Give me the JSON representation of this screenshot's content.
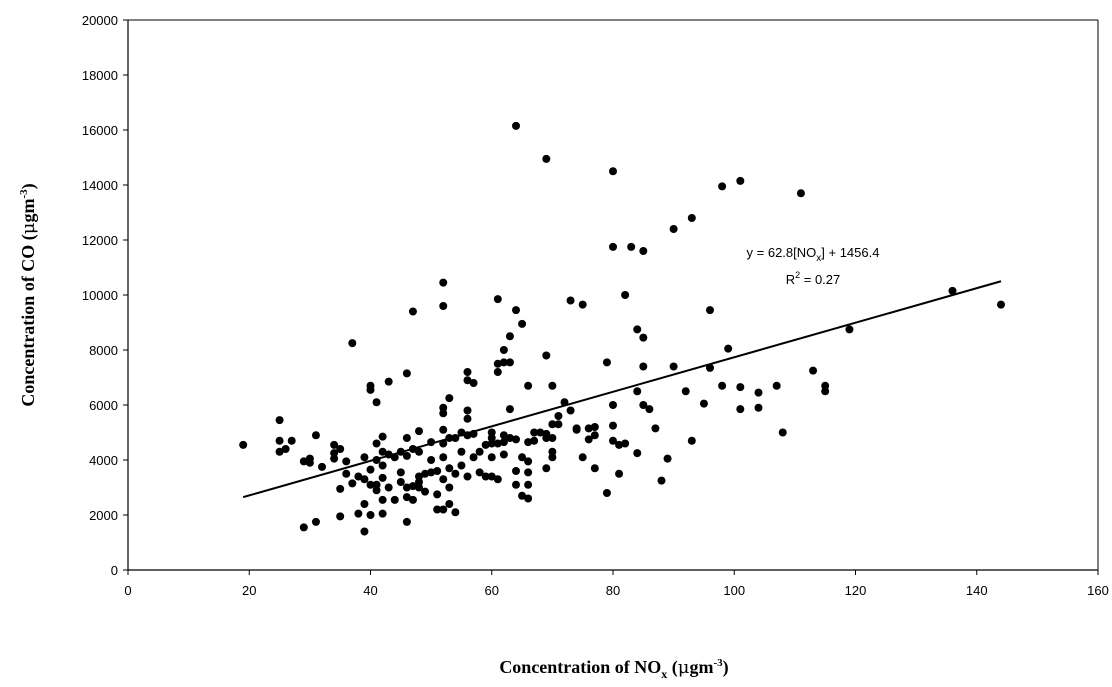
{
  "chart_data": {
    "type": "scatter",
    "title": "",
    "xlabel": {
      "main": "Concentration of NO",
      "sub": "x",
      "unit_open": " (",
      "unit_mu": "μ",
      "unit_text": "gm",
      "unit_sup": "-3",
      "unit_close": ")"
    },
    "ylabel": {
      "main": "Concentration of CO (",
      "unit_mu": "μ",
      "unit_text": "gm",
      "unit_sup": "-3",
      "unit_close": ")"
    },
    "xlim": [
      0,
      160
    ],
    "ylim": [
      0,
      20000
    ],
    "x_ticks": [
      "0",
      "20",
      "40",
      "60",
      "80",
      "100",
      "120",
      "140",
      "160"
    ],
    "y_ticks": [
      "0",
      "2000",
      "4000",
      "6000",
      "8000",
      "10000",
      "12000",
      "14000",
      "16000",
      "18000",
      "20000"
    ],
    "grid": false,
    "legend": "none",
    "trendline": {
      "slope": 62.8,
      "intercept": 1456.4,
      "x_range": [
        19,
        144
      ],
      "equation_label": {
        "prefix": "y = 62.8[NO",
        "sub": "x",
        "suffix": "] + 1456.4"
      },
      "r2_label": {
        "prefix": "R",
        "sup": "2",
        "suffix": " = 0.27"
      }
    },
    "marker_color": "#000000",
    "points": [
      [
        19,
        4550
      ],
      [
        25,
        5450
      ],
      [
        25,
        4700
      ],
      [
        25,
        4300
      ],
      [
        26,
        4400
      ],
      [
        27,
        4700
      ],
      [
        29,
        1550
      ],
      [
        29,
        3950
      ],
      [
        30,
        3900
      ],
      [
        30,
        4050
      ],
      [
        31,
        1750
      ],
      [
        31,
        4900
      ],
      [
        32,
        3750
      ],
      [
        34,
        4550
      ],
      [
        34,
        4050
      ],
      [
        34,
        4250
      ],
      [
        35,
        1950
      ],
      [
        35,
        2950
      ],
      [
        35,
        4400
      ],
      [
        36,
        3500
      ],
      [
        36,
        3950
      ],
      [
        37,
        8250
      ],
      [
        37,
        3150
      ],
      [
        38,
        3400
      ],
      [
        38,
        2050
      ],
      [
        39,
        1400
      ],
      [
        39,
        2400
      ],
      [
        39,
        3300
      ],
      [
        39,
        4100
      ],
      [
        40,
        6700
      ],
      [
        40,
        6550
      ],
      [
        40,
        3100
      ],
      [
        40,
        2000
      ],
      [
        40,
        3650
      ],
      [
        41,
        6100
      ],
      [
        41,
        4600
      ],
      [
        41,
        2900
      ],
      [
        41,
        3100
      ],
      [
        41,
        4000
      ],
      [
        42,
        4850
      ],
      [
        42,
        4300
      ],
      [
        42,
        3800
      ],
      [
        42,
        3350
      ],
      [
        42,
        2550
      ],
      [
        42,
        2050
      ],
      [
        43,
        6850
      ],
      [
        43,
        4200
      ],
      [
        43,
        3000
      ],
      [
        44,
        4100
      ],
      [
        44,
        2550
      ],
      [
        45,
        3200
      ],
      [
        45,
        3550
      ],
      [
        45,
        4300
      ],
      [
        46,
        7150
      ],
      [
        46,
        4800
      ],
      [
        46,
        3000
      ],
      [
        46,
        2650
      ],
      [
        46,
        1750
      ],
      [
        46,
        4150
      ],
      [
        47,
        9400
      ],
      [
        47,
        4400
      ],
      [
        47,
        3050
      ],
      [
        47,
        2550
      ],
      [
        48,
        5050
      ],
      [
        48,
        4300
      ],
      [
        48,
        3400
      ],
      [
        48,
        3200
      ],
      [
        48,
        3000
      ],
      [
        49,
        3500
      ],
      [
        49,
        2850
      ],
      [
        50,
        4650
      ],
      [
        50,
        4000
      ],
      [
        50,
        3550
      ],
      [
        51,
        3600
      ],
      [
        51,
        2750
      ],
      [
        51,
        2200
      ],
      [
        52,
        10450
      ],
      [
        52,
        9600
      ],
      [
        52,
        5900
      ],
      [
        52,
        5700
      ],
      [
        52,
        5100
      ],
      [
        52,
        4600
      ],
      [
        52,
        4100
      ],
      [
        52,
        3300
      ],
      [
        52,
        2200
      ],
      [
        53,
        6250
      ],
      [
        53,
        4800
      ],
      [
        53,
        3700
      ],
      [
        53,
        3000
      ],
      [
        53,
        2400
      ],
      [
        54,
        4800
      ],
      [
        54,
        3500
      ],
      [
        54,
        2100
      ],
      [
        55,
        5000
      ],
      [
        55,
        4300
      ],
      [
        55,
        3800
      ],
      [
        56,
        7200
      ],
      [
        56,
        6900
      ],
      [
        56,
        5800
      ],
      [
        56,
        5500
      ],
      [
        56,
        4900
      ],
      [
        56,
        3400
      ],
      [
        57,
        6800
      ],
      [
        57,
        4950
      ],
      [
        57,
        4100
      ],
      [
        58,
        4300
      ],
      [
        58,
        3550
      ],
      [
        59,
        4550
      ],
      [
        59,
        3400
      ],
      [
        60,
        5000
      ],
      [
        60,
        4800
      ],
      [
        60,
        4600
      ],
      [
        60,
        4100
      ],
      [
        60,
        3400
      ],
      [
        61,
        9850
      ],
      [
        61,
        7500
      ],
      [
        61,
        7200
      ],
      [
        61,
        4600
      ],
      [
        61,
        3300
      ],
      [
        62,
        8000
      ],
      [
        62,
        7550
      ],
      [
        62,
        4900
      ],
      [
        62,
        4650
      ],
      [
        62,
        4200
      ],
      [
        63,
        8500
      ],
      [
        63,
        7550
      ],
      [
        63,
        5850
      ],
      [
        63,
        4800
      ],
      [
        64,
        16150
      ],
      [
        64,
        9450
      ],
      [
        64,
        4750
      ],
      [
        64,
        3600
      ],
      [
        64,
        3100
      ],
      [
        65,
        8950
      ],
      [
        65,
        4100
      ],
      [
        65,
        2700
      ],
      [
        66,
        6700
      ],
      [
        66,
        4650
      ],
      [
        66,
        3950
      ],
      [
        66,
        3550
      ],
      [
        66,
        3100
      ],
      [
        66,
        2600
      ],
      [
        67,
        5000
      ],
      [
        67,
        4700
      ],
      [
        68,
        5000
      ],
      [
        69,
        14950
      ],
      [
        69,
        7800
      ],
      [
        69,
        4950
      ],
      [
        69,
        4800
      ],
      [
        69,
        3700
      ],
      [
        70,
        6700
      ],
      [
        70,
        5300
      ],
      [
        70,
        4800
      ],
      [
        70,
        4300
      ],
      [
        70,
        4100
      ],
      [
        71,
        5600
      ],
      [
        71,
        5300
      ],
      [
        72,
        6100
      ],
      [
        73,
        9800
      ],
      [
        73,
        5800
      ],
      [
        74,
        5150
      ],
      [
        74,
        5100
      ],
      [
        75,
        9650
      ],
      [
        75,
        4100
      ],
      [
        76,
        5150
      ],
      [
        76,
        4750
      ],
      [
        77,
        5200
      ],
      [
        77,
        4900
      ],
      [
        77,
        3700
      ],
      [
        79,
        7550
      ],
      [
        79,
        2800
      ],
      [
        80,
        14500
      ],
      [
        80,
        11750
      ],
      [
        80,
        6000
      ],
      [
        80,
        5250
      ],
      [
        80,
        4700
      ],
      [
        81,
        3500
      ],
      [
        81,
        4550
      ],
      [
        82,
        10000
      ],
      [
        82,
        4600
      ],
      [
        83,
        11750
      ],
      [
        84,
        8750
      ],
      [
        84,
        6500
      ],
      [
        84,
        4250
      ],
      [
        85,
        11600
      ],
      [
        85,
        8450
      ],
      [
        85,
        7400
      ],
      [
        85,
        6000
      ],
      [
        86,
        5850
      ],
      [
        87,
        5150
      ],
      [
        88,
        3250
      ],
      [
        89,
        4050
      ],
      [
        90,
        12400
      ],
      [
        90,
        7400
      ],
      [
        92,
        6500
      ],
      [
        93,
        12800
      ],
      [
        93,
        4700
      ],
      [
        95,
        6050
      ],
      [
        96,
        9450
      ],
      [
        96,
        7350
      ],
      [
        98,
        13950
      ],
      [
        98,
        6700
      ],
      [
        99,
        8050
      ],
      [
        101,
        14150
      ],
      [
        101,
        6650
      ],
      [
        101,
        5850
      ],
      [
        104,
        6450
      ],
      [
        104,
        5900
      ],
      [
        107,
        6700
      ],
      [
        108,
        5000
      ],
      [
        111,
        13700
      ],
      [
        113,
        7250
      ],
      [
        115,
        6700
      ],
      [
        115,
        6500
      ],
      [
        119,
        8750
      ],
      [
        136,
        10150
      ],
      [
        144,
        9650
      ]
    ]
  }
}
